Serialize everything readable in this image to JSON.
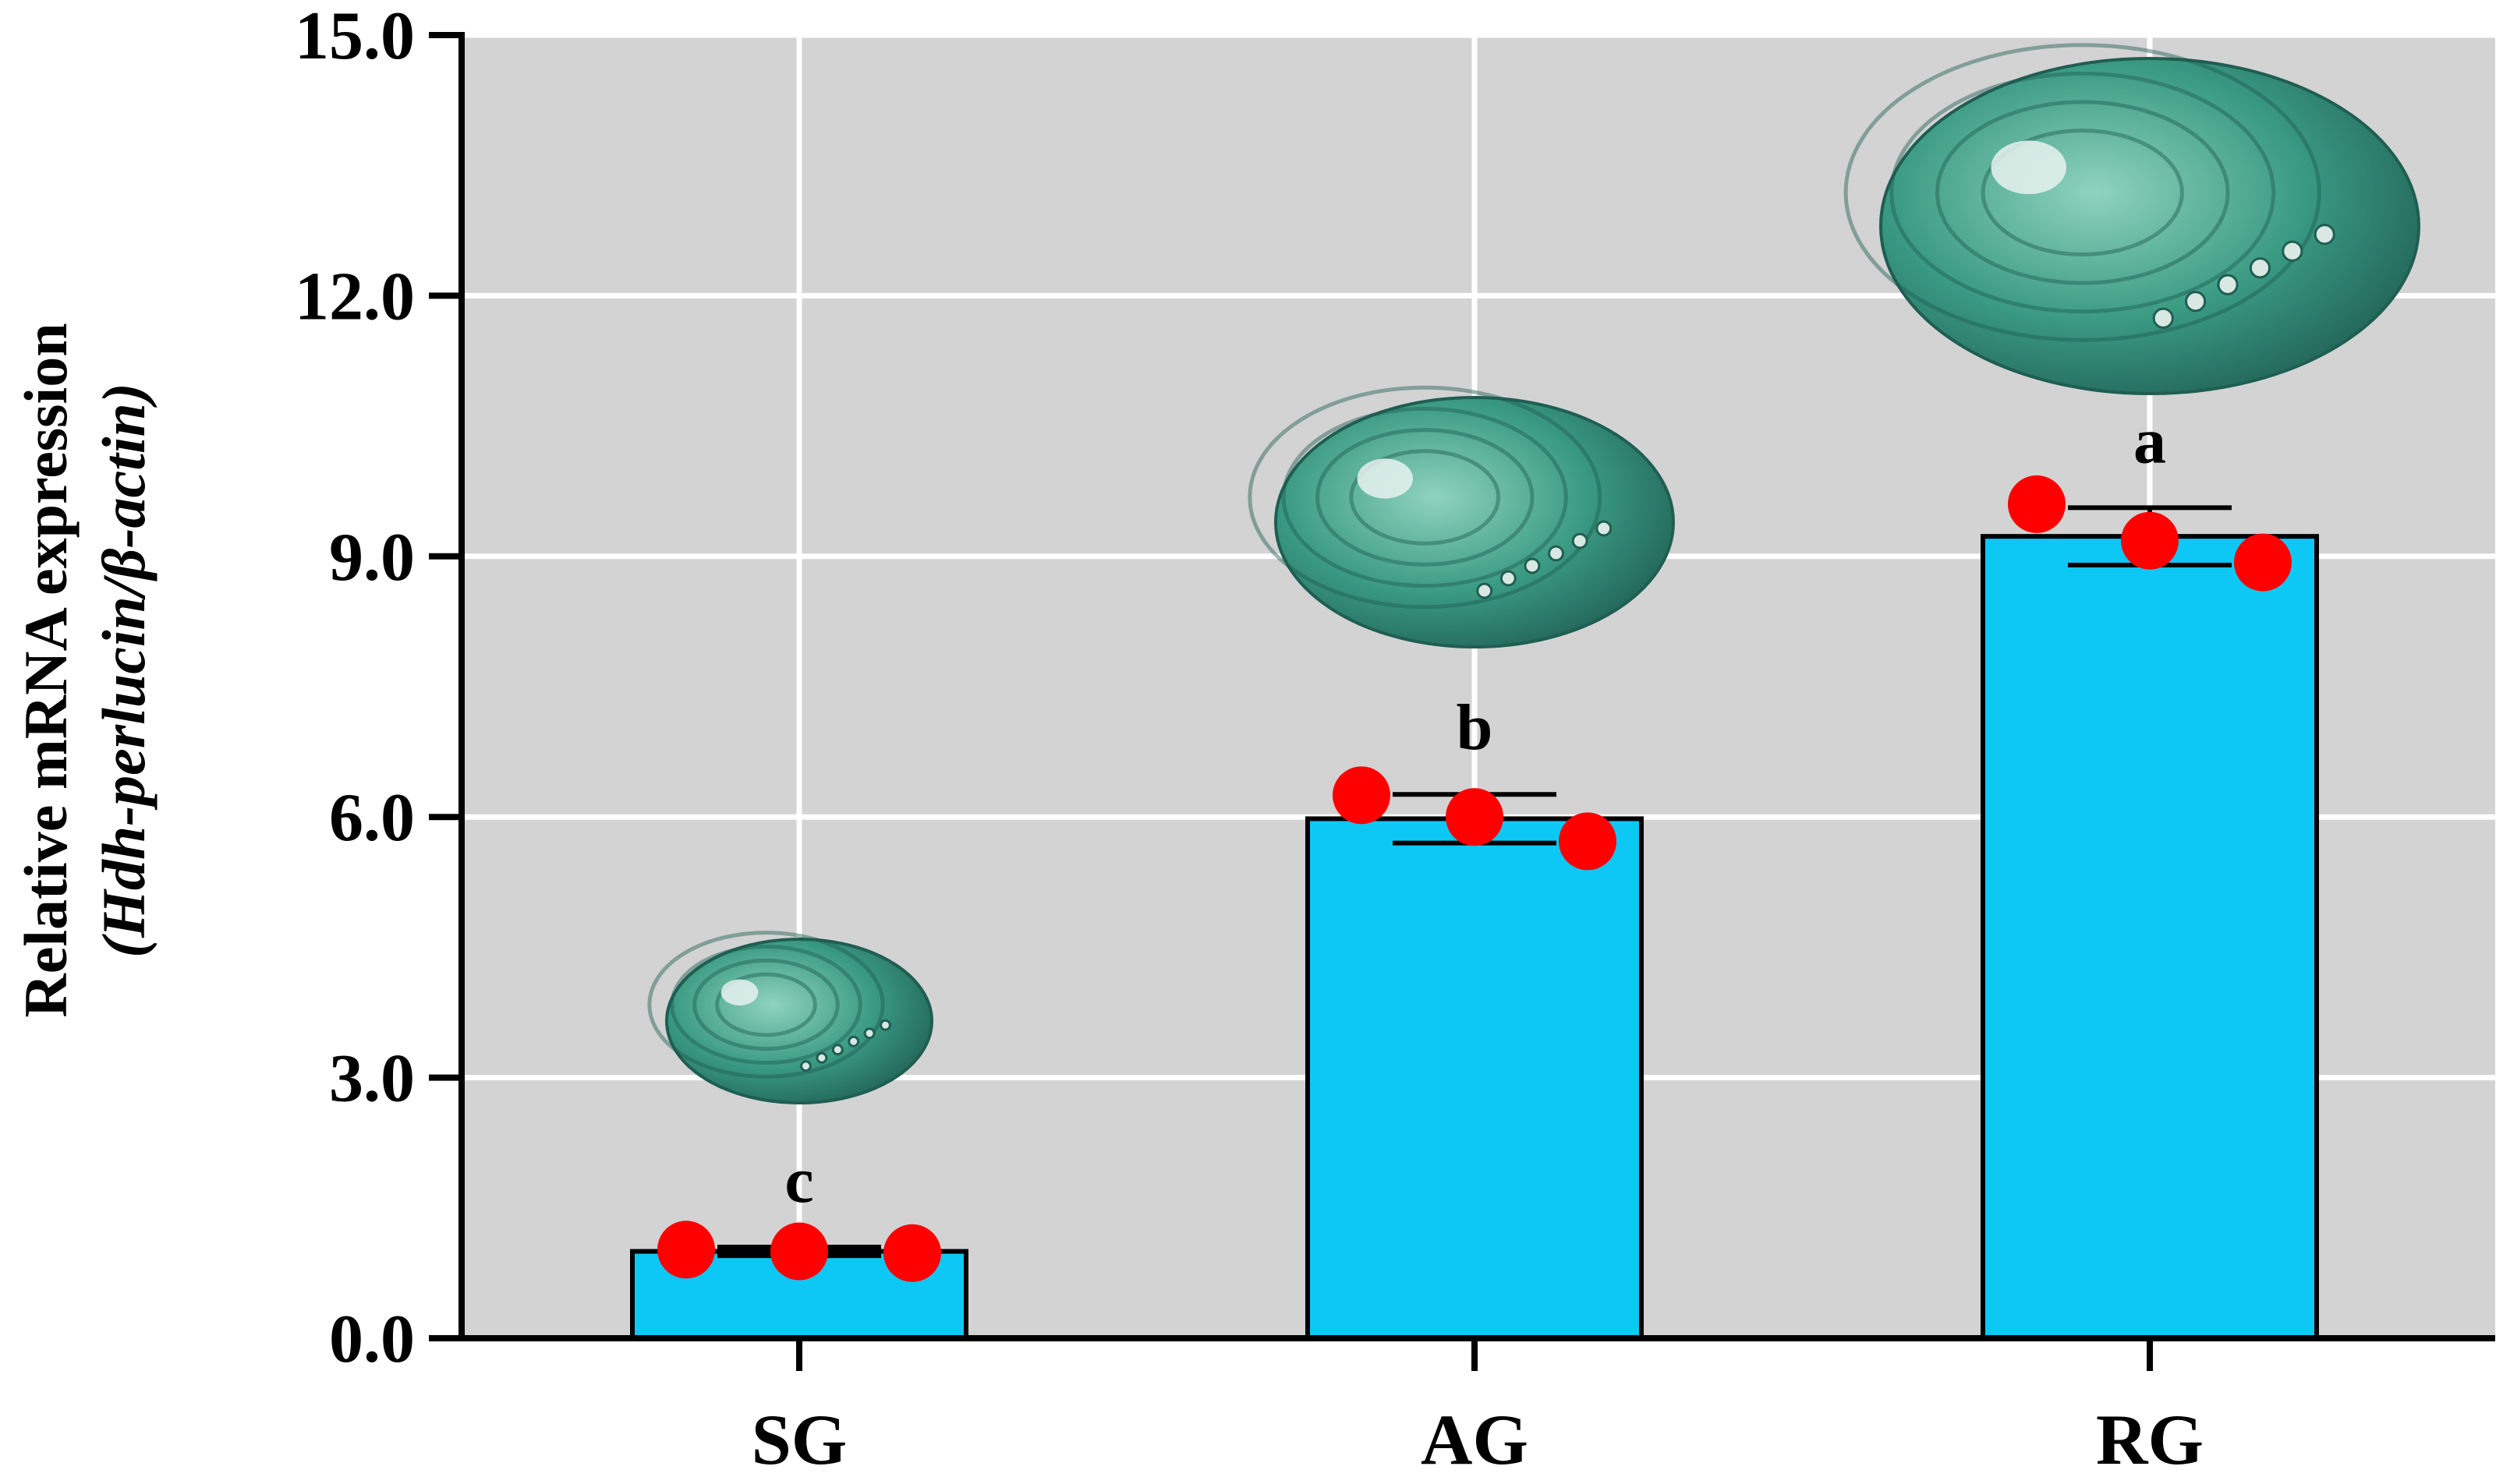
{
  "chart_data": {
    "type": "bar",
    "categories": [
      "SG",
      "AG",
      "RG"
    ],
    "values": [
      1.0,
      5.98,
      9.23
    ],
    "errors": [
      0.05,
      0.28,
      0.33
    ],
    "replicates": [
      [
        1.02,
        1.0,
        0.98
      ],
      [
        6.25,
        6.0,
        5.72
      ],
      [
        9.6,
        9.18,
        8.93
      ]
    ],
    "significance": [
      "c",
      "b",
      "a"
    ],
    "ylabel_line1": "Relative mRNA expression",
    "ylabel_line2": "(Hdh-perlucin/β-actin)",
    "ylim": [
      0,
      15
    ],
    "yticks": [
      "0.0",
      "3.0",
      "6.0",
      "9.0",
      "12.0",
      "15.0"
    ],
    "grid": true,
    "colors": {
      "bar": "#0dc8f5",
      "bar_edge": "#000000",
      "point": "#ff0000",
      "plot_bg": "#d3d3d3",
      "grid": "#ffffff",
      "shell_dark": "#1f5e52",
      "shell_mid": "#3a9a82",
      "shell_light": "#8fd3bd"
    },
    "shell_icons": [
      "abalone-shell-icon",
      "abalone-shell-icon",
      "abalone-shell-icon"
    ]
  }
}
